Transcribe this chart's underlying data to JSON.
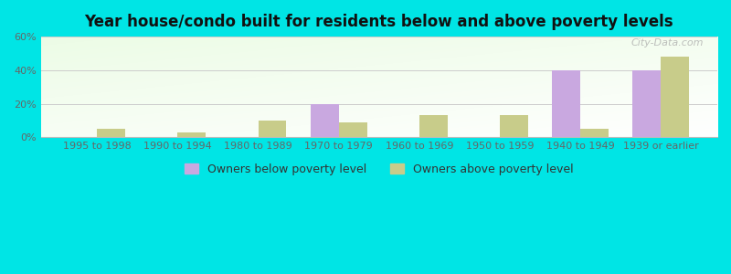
{
  "title": "Year house/condo built for residents below and above poverty levels",
  "categories": [
    "1995 to 1998",
    "1990 to 1994",
    "1980 to 1989",
    "1970 to 1979",
    "1960 to 1969",
    "1950 to 1959",
    "1940 to 1949",
    "1939 or earlier"
  ],
  "below_poverty": [
    0,
    0,
    0,
    20,
    0,
    0,
    40,
    40
  ],
  "above_poverty": [
    5,
    3,
    10,
    9,
    13,
    13,
    5,
    48
  ],
  "below_color": "#c9a8e0",
  "above_color": "#c8cc8a",
  "ylim": [
    0,
    60
  ],
  "yticks": [
    0,
    20,
    40,
    60
  ],
  "ytick_labels": [
    "0%",
    "20%",
    "40%",
    "60%"
  ],
  "legend_below": "Owners below poverty level",
  "legend_above": "Owners above poverty level",
  "outer_bg": "#00e5e5",
  "watermark": "City-Data.com",
  "bar_width": 0.35,
  "title_fontsize": 12,
  "tick_fontsize": 8,
  "legend_fontsize": 9
}
